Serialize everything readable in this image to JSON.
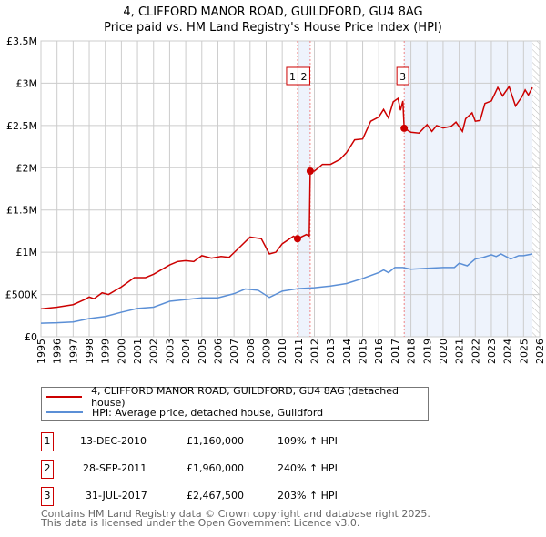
{
  "title": "4, CLIFFORD MANOR ROAD, GUILDFORD, GU4 8AG",
  "subtitle": "Price paid vs. HM Land Registry's House Price Index (HPI)",
  "chart_data": {
    "type": "line",
    "title": "4, CLIFFORD MANOR ROAD, GUILDFORD, GU4 8AG — Price paid vs. HM Land Registry's House Price Index (HPI)",
    "xlim": [
      1995,
      2026
    ],
    "ylim": [
      0,
      3500000
    ],
    "xticks": [
      "1995",
      "1996",
      "1997",
      "1998",
      "1999",
      "2000",
      "2001",
      "2002",
      "2003",
      "2004",
      "2005",
      "2006",
      "2007",
      "2008",
      "2009",
      "2010",
      "2011",
      "2012",
      "2013",
      "2014",
      "2015",
      "2016",
      "2017",
      "2018",
      "2019",
      "2020",
      "2021",
      "2022",
      "2023",
      "2024",
      "2025",
      "2026"
    ],
    "yticks": [
      {
        "v": 0,
        "label": "£0"
      },
      {
        "v": 500000,
        "label": "£500K"
      },
      {
        "v": 1000000,
        "label": "£1M"
      },
      {
        "v": 1500000,
        "label": "£1.5M"
      },
      {
        "v": 2000000,
        "label": "£2M"
      },
      {
        "v": 2500000,
        "label": "£2.5M"
      },
      {
        "v": 3000000,
        "label": "£3M"
      },
      {
        "v": 3500000,
        "label": "£3.5M"
      }
    ],
    "grid": true,
    "series": [
      {
        "name": "4, CLIFFORD MANOR ROAD, GUILDFORD, GU4 8AG (detached house)",
        "color": "#cc0000",
        "points": [
          [
            1995,
            330000
          ],
          [
            1996,
            350000
          ],
          [
            1997,
            380000
          ],
          [
            1997.7,
            440000
          ],
          [
            1998,
            470000
          ],
          [
            1998.3,
            450000
          ],
          [
            1998.8,
            520000
          ],
          [
            1999.2,
            500000
          ],
          [
            2000,
            590000
          ],
          [
            2000.8,
            700000
          ],
          [
            2001.5,
            700000
          ],
          [
            2002,
            740000
          ],
          [
            2003,
            850000
          ],
          [
            2003.5,
            890000
          ],
          [
            2004,
            900000
          ],
          [
            2004.5,
            890000
          ],
          [
            2005,
            960000
          ],
          [
            2005.6,
            930000
          ],
          [
            2006.2,
            950000
          ],
          [
            2006.7,
            940000
          ],
          [
            2007.3,
            1050000
          ],
          [
            2008,
            1180000
          ],
          [
            2008.7,
            1160000
          ],
          [
            2009.2,
            980000
          ],
          [
            2009.6,
            1000000
          ],
          [
            2010,
            1100000
          ],
          [
            2010.7,
            1190000
          ],
          [
            2010.95,
            1160000
          ],
          [
            2011.5,
            1210000
          ],
          [
            2011.68,
            1190000
          ],
          [
            2011.74,
            1960000
          ],
          [
            2012,
            1960000
          ],
          [
            2012.5,
            2040000
          ],
          [
            2013,
            2040000
          ],
          [
            2013.6,
            2100000
          ],
          [
            2014,
            2180000
          ],
          [
            2014.5,
            2330000
          ],
          [
            2015,
            2340000
          ],
          [
            2015.5,
            2550000
          ],
          [
            2016,
            2600000
          ],
          [
            2016.3,
            2690000
          ],
          [
            2016.6,
            2590000
          ],
          [
            2016.9,
            2780000
          ],
          [
            2017.2,
            2820000
          ],
          [
            2017.35,
            2680000
          ],
          [
            2017.5,
            2790000
          ],
          [
            2017.58,
            2467500
          ],
          [
            2018,
            2420000
          ],
          [
            2018.5,
            2410000
          ],
          [
            2019,
            2510000
          ],
          [
            2019.3,
            2430000
          ],
          [
            2019.6,
            2500000
          ],
          [
            2020,
            2470000
          ],
          [
            2020.5,
            2490000
          ],
          [
            2020.8,
            2540000
          ],
          [
            2021.2,
            2430000
          ],
          [
            2021.4,
            2580000
          ],
          [
            2021.8,
            2650000
          ],
          [
            2022,
            2550000
          ],
          [
            2022.3,
            2560000
          ],
          [
            2022.6,
            2760000
          ],
          [
            2023,
            2790000
          ],
          [
            2023.4,
            2950000
          ],
          [
            2023.7,
            2850000
          ],
          [
            2024.1,
            2960000
          ],
          [
            2024.5,
            2730000
          ],
          [
            2024.9,
            2840000
          ],
          [
            2025.1,
            2920000
          ],
          [
            2025.3,
            2860000
          ],
          [
            2025.55,
            2950000
          ]
        ]
      },
      {
        "name": "HPI: Average price, detached house, Guildford",
        "color": "#5b8fd6",
        "points": [
          [
            1995,
            160000
          ],
          [
            1996,
            165000
          ],
          [
            1997,
            175000
          ],
          [
            1998,
            215000
          ],
          [
            1999,
            240000
          ],
          [
            2000,
            290000
          ],
          [
            2001,
            335000
          ],
          [
            2002,
            350000
          ],
          [
            2003,
            420000
          ],
          [
            2004,
            440000
          ],
          [
            2005,
            460000
          ],
          [
            2006,
            460000
          ],
          [
            2007,
            510000
          ],
          [
            2007.7,
            565000
          ],
          [
            2008.5,
            550000
          ],
          [
            2009.2,
            465000
          ],
          [
            2010,
            540000
          ],
          [
            2011,
            570000
          ],
          [
            2012,
            580000
          ],
          [
            2013,
            600000
          ],
          [
            2014,
            630000
          ],
          [
            2015,
            690000
          ],
          [
            2016,
            760000
          ],
          [
            2016.3,
            790000
          ],
          [
            2016.6,
            760000
          ],
          [
            2017,
            820000
          ],
          [
            2017.5,
            820000
          ],
          [
            2018,
            800000
          ],
          [
            2019,
            810000
          ],
          [
            2020,
            820000
          ],
          [
            2020.7,
            820000
          ],
          [
            2021,
            870000
          ],
          [
            2021.5,
            840000
          ],
          [
            2022,
            920000
          ],
          [
            2022.5,
            940000
          ],
          [
            2023,
            970000
          ],
          [
            2023.3,
            950000
          ],
          [
            2023.6,
            980000
          ],
          [
            2024.2,
            920000
          ],
          [
            2024.7,
            960000
          ],
          [
            2025,
            960000
          ],
          [
            2025.55,
            980000
          ]
        ]
      }
    ],
    "sales": [
      {
        "n": "1",
        "x": 2010.95,
        "y": 1160000
      },
      {
        "n": "2",
        "x": 2011.74,
        "y": 1960000
      },
      {
        "n": "3",
        "x": 2017.58,
        "y": 2467500
      }
    ],
    "shaded": [
      [
        2010.95,
        2011.74
      ],
      [
        2017.58,
        2025.55
      ]
    ],
    "hatched_from": 2025.55,
    "legend_placement": "below"
  },
  "legend": [
    "4, CLIFFORD MANOR ROAD, GUILDFORD, GU4 8AG (detached house)",
    "HPI: Average price, detached house, Guildford"
  ],
  "transactions": [
    {
      "n": "1",
      "date": "13-DEC-2010",
      "price": "£1,160,000",
      "hpi": "109% ↑ HPI"
    },
    {
      "n": "2",
      "date": "28-SEP-2011",
      "price": "£1,960,000",
      "hpi": "240% ↑ HPI"
    },
    {
      "n": "3",
      "date": "31-JUL-2017",
      "price": "£2,467,500",
      "hpi": "203% ↑ HPI"
    }
  ],
  "footer": [
    "Contains HM Land Registry data © Crown copyright and database right 2025.",
    "This data is licensed under the Open Government Licence v3.0."
  ]
}
